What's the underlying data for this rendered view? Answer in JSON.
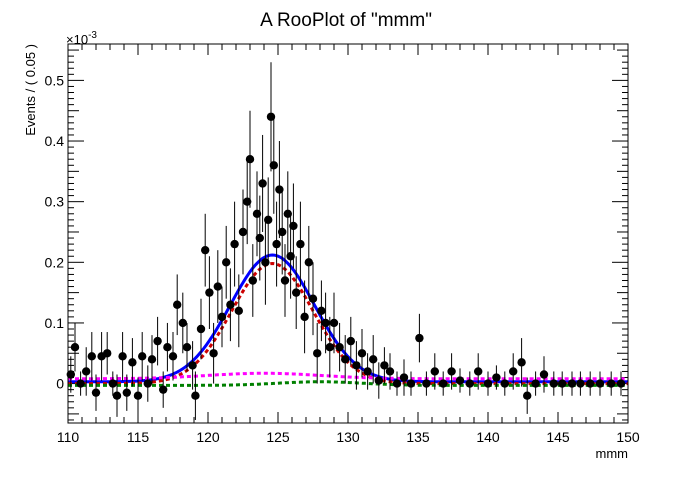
{
  "chart_data": {
    "type": "scatter",
    "title": "A RooPlot of \"mmm\"",
    "xlabel": "mmm",
    "ylabel": "Events / ( 0.05 )",
    "y_exponent": "×10",
    "y_exponent_power": "-3",
    "xlim": [
      110,
      150
    ],
    "ylim": [
      -0.065,
      0.56
    ],
    "x_ticks": [
      110,
      115,
      120,
      125,
      130,
      135,
      140,
      145,
      150
    ],
    "x_tick_labels": [
      "110",
      "115",
      "120",
      "125",
      "130",
      "135",
      "140",
      "145",
      "150"
    ],
    "y_ticks": [
      0,
      0.1,
      0.2,
      0.3,
      0.4,
      0.5
    ],
    "y_tick_labels": [
      "0",
      "0.1",
      "0.2",
      "0.3",
      "0.4",
      "0.5"
    ],
    "grid": false,
    "series": [
      {
        "kind": "data_points",
        "color": "#000000",
        "points": [
          [
            110.2,
            0.015,
            0.03
          ],
          [
            110.5,
            0.06,
            0.04
          ],
          [
            110.9,
            0.0,
            0.02
          ],
          [
            111.3,
            0.02,
            0.04
          ],
          [
            111.7,
            0.045,
            0.04
          ],
          [
            112.0,
            -0.015,
            0.03
          ],
          [
            112.4,
            0.045,
            0.04
          ],
          [
            112.8,
            0.05,
            0.035
          ],
          [
            113.2,
            0.0,
            0.02
          ],
          [
            113.5,
            -0.02,
            0.035
          ],
          [
            113.9,
            0.045,
            0.04
          ],
          [
            114.2,
            -0.015,
            0.03
          ],
          [
            114.6,
            0.035,
            0.04
          ],
          [
            115.0,
            -0.02,
            0.03
          ],
          [
            115.3,
            0.045,
            0.04
          ],
          [
            115.7,
            0.0,
            0.03
          ],
          [
            116.0,
            0.04,
            0.04
          ],
          [
            116.4,
            0.07,
            0.04
          ],
          [
            116.8,
            -0.01,
            0.03
          ],
          [
            117.1,
            0.06,
            0.04
          ],
          [
            117.5,
            0.045,
            0.04
          ],
          [
            117.8,
            0.13,
            0.05
          ],
          [
            118.2,
            0.1,
            0.05
          ],
          [
            118.5,
            0.06,
            0.04
          ],
          [
            118.9,
            0.03,
            0.04
          ],
          [
            119.1,
            -0.02,
            0.04
          ],
          [
            119.5,
            0.09,
            0.05
          ],
          [
            119.8,
            0.22,
            0.06
          ],
          [
            120.1,
            0.15,
            0.06
          ],
          [
            120.4,
            0.05,
            0.05
          ],
          [
            120.7,
            0.16,
            0.06
          ],
          [
            121.0,
            0.11,
            0.05
          ],
          [
            121.3,
            0.2,
            0.06
          ],
          [
            121.6,
            0.13,
            0.06
          ],
          [
            121.9,
            0.23,
            0.07
          ],
          [
            122.2,
            0.12,
            0.06
          ],
          [
            122.5,
            0.25,
            0.07
          ],
          [
            122.8,
            0.3,
            0.07
          ],
          [
            123.0,
            0.37,
            0.08
          ],
          [
            123.2,
            0.17,
            0.06
          ],
          [
            123.5,
            0.28,
            0.07
          ],
          [
            123.7,
            0.24,
            0.07
          ],
          [
            123.9,
            0.33,
            0.08
          ],
          [
            124.1,
            0.2,
            0.07
          ],
          [
            124.3,
            0.27,
            0.07
          ],
          [
            124.5,
            0.44,
            0.09
          ],
          [
            124.7,
            0.36,
            0.08
          ],
          [
            124.9,
            0.23,
            0.07
          ],
          [
            125.1,
            0.32,
            0.08
          ],
          [
            125.3,
            0.25,
            0.07
          ],
          [
            125.5,
            0.17,
            0.06
          ],
          [
            125.7,
            0.28,
            0.07
          ],
          [
            125.9,
            0.21,
            0.07
          ],
          [
            126.1,
            0.26,
            0.07
          ],
          [
            126.3,
            0.15,
            0.06
          ],
          [
            126.6,
            0.23,
            0.07
          ],
          [
            126.9,
            0.11,
            0.06
          ],
          [
            127.2,
            0.2,
            0.06
          ],
          [
            127.5,
            0.14,
            0.06
          ],
          [
            127.8,
            0.05,
            0.05
          ],
          [
            128.1,
            0.12,
            0.05
          ],
          [
            128.4,
            0.1,
            0.05
          ],
          [
            128.7,
            0.06,
            0.05
          ],
          [
            129.0,
            0.1,
            0.05
          ],
          [
            129.4,
            0.06,
            0.04
          ],
          [
            129.8,
            0.04,
            0.04
          ],
          [
            130.2,
            0.07,
            0.04
          ],
          [
            130.6,
            0.03,
            0.04
          ],
          [
            131.0,
            0.05,
            0.04
          ],
          [
            131.4,
            0.02,
            0.03
          ],
          [
            131.8,
            0.04,
            0.04
          ],
          [
            132.2,
            0.005,
            0.03
          ],
          [
            132.6,
            0.03,
            0.03
          ],
          [
            133.0,
            0.02,
            0.03
          ],
          [
            133.5,
            0.0,
            0.02
          ],
          [
            134.0,
            0.01,
            0.03
          ],
          [
            134.5,
            0.0,
            0.02
          ],
          [
            135.1,
            0.075,
            0.04
          ],
          [
            135.6,
            0.0,
            0.02
          ],
          [
            136.2,
            0.02,
            0.03
          ],
          [
            136.8,
            0.0,
            0.02
          ],
          [
            137.4,
            0.02,
            0.03
          ],
          [
            138.0,
            0.005,
            0.02
          ],
          [
            138.7,
            0.0,
            0.02
          ],
          [
            139.3,
            0.02,
            0.03
          ],
          [
            140.0,
            0.0,
            0.02
          ],
          [
            140.6,
            0.01,
            0.02
          ],
          [
            141.2,
            0.0,
            0.02
          ],
          [
            141.8,
            0.02,
            0.03
          ],
          [
            142.4,
            0.035,
            0.04
          ],
          [
            142.8,
            -0.02,
            0.03
          ],
          [
            143.4,
            0.0,
            0.02
          ],
          [
            144.0,
            0.015,
            0.03
          ],
          [
            144.7,
            0.0,
            0.02
          ],
          [
            145.3,
            0.0,
            0.02
          ],
          [
            146.0,
            0.0,
            0.02
          ],
          [
            146.6,
            0.0,
            0.02
          ],
          [
            147.3,
            0.0,
            0.02
          ],
          [
            148.0,
            0.0,
            0.02
          ],
          [
            148.8,
            0.0,
            0.02
          ],
          [
            149.5,
            0.0,
            0.02
          ]
        ]
      },
      {
        "kind": "curve",
        "style": "solid",
        "color": "#0000ff",
        "model": "gauss_plus_const",
        "peak": 0.212,
        "mean": 124.6,
        "sigma": 3.0,
        "baseline": 0.003
      },
      {
        "kind": "curve",
        "style": "dashed",
        "color": "#cc0000",
        "model": "gauss_plus_const",
        "peak": 0.198,
        "mean": 124.6,
        "sigma": 2.9,
        "baseline": 0.0
      },
      {
        "kind": "curve",
        "style": "dashed",
        "color": "#ff00ff",
        "model": "bump",
        "level": 0.008,
        "bump": 0.009,
        "mean": 124.0,
        "sigma": 4.0
      },
      {
        "kind": "curve",
        "style": "dashed",
        "color": "#008000",
        "model": "bump",
        "level": -0.003,
        "bump": 0.006,
        "mean": 128.0,
        "sigma": 3.0
      }
    ]
  }
}
